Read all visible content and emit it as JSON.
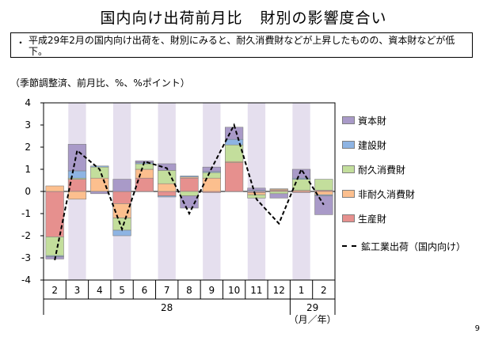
{
  "page": {
    "title_part1": "国内向け出荷前月比",
    "title_part2": "財別の影響度合い",
    "summary_bullet": "・",
    "summary_text": "平成29年2月の国内向け出荷を、財別にみると、耐久消費財などが上昇したものの、資本財などが低下。",
    "page_number": "9"
  },
  "chart_data": {
    "type": "bar",
    "stacked": true,
    "unit_label": "（季節調整済、前月比、%、%ポイント）",
    "categories": [
      "2",
      "3",
      "4",
      "5",
      "6",
      "7",
      "8",
      "9",
      "10",
      "11",
      "12",
      "1",
      "2"
    ],
    "year_labels": [
      {
        "label": "28",
        "from_index": 0,
        "to_index": 10
      },
      {
        "label": "29",
        "from_index": 11,
        "to_index": 12
      }
    ],
    "x_unit_label": "（月／年）",
    "ylim": [
      -4,
      4
    ],
    "yticks": [
      4,
      3,
      2,
      1,
      0,
      -1,
      -2,
      -3,
      -4
    ],
    "shaded_categories": [
      1,
      3,
      5,
      7,
      9,
      11
    ],
    "series": [
      {
        "name": "資本財",
        "color": "#a99ac8",
        "values": [
          -0.1,
          1.2,
          -0.1,
          0.55,
          0.08,
          0.3,
          -0.55,
          0.2,
          0.55,
          0.1,
          -0.2,
          0.4,
          -0.85
        ]
      },
      {
        "name": "建設財",
        "color": "#8eb4e3",
        "values": [
          -0.05,
          0.33,
          0.05,
          -0.25,
          0.05,
          -0.05,
          0.05,
          0.05,
          0.25,
          0.05,
          0.02,
          0.05,
          -0.05
        ]
      },
      {
        "name": "耐久消費財",
        "color": "#c3de9c",
        "values": [
          -0.85,
          0.05,
          0.5,
          -0.55,
          0.25,
          0.6,
          -0.2,
          0.25,
          0.75,
          -0.15,
          -0.1,
          0.5,
          0.5
        ]
      },
      {
        "name": "非耐久消費財",
        "color": "#fcbf8e",
        "values": [
          0.25,
          -0.35,
          0.6,
          -0.65,
          0.4,
          0.35,
          0.05,
          0.6,
          0.05,
          -0.1,
          0.05,
          0.05,
          -0.15
        ]
      },
      {
        "name": "生産財",
        "color": "#e6908e",
        "values": [
          -2.05,
          0.55,
          0.0,
          -0.55,
          0.6,
          -0.2,
          0.6,
          -0.05,
          1.3,
          -0.05,
          0.05,
          -0.05,
          0.05
        ]
      }
    ],
    "line": {
      "name": "鉱工業出荷（国内向け）",
      "values": [
        -3.1,
        1.85,
        1.0,
        -1.7,
        1.35,
        1.05,
        -1.0,
        1.05,
        3.0,
        -0.35,
        -1.45,
        1.0,
        -0.6
      ]
    },
    "legend_position": "right"
  }
}
